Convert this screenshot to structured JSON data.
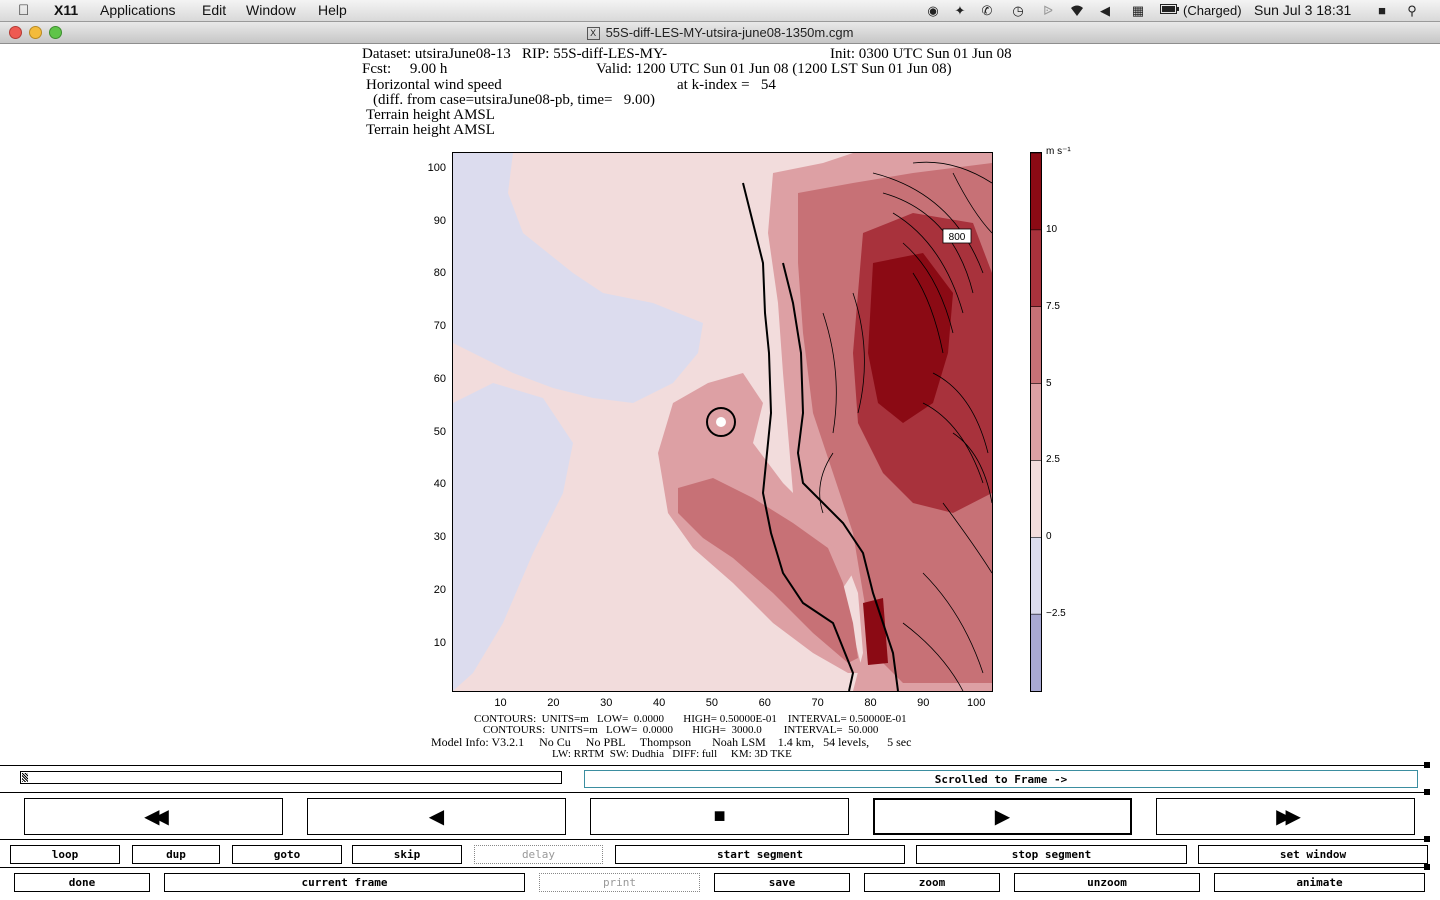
{
  "menubar": {
    "app": "X11",
    "items": [
      "Applications",
      "Edit",
      "Window",
      "Help"
    ],
    "battery": "(Charged)",
    "clock": "Sun Jul 3  18:31"
  },
  "window": {
    "title": "55S-diff-LES-MY-utsira-june08-1350m.cgm"
  },
  "header": {
    "line1a": "Dataset: utsiraJune08-13   RIP: 55S-diff-LES-MY-",
    "line1b": "Init: 0300 UTC Sun 01 Jun 08",
    "line2a": "Fcst:     9.00 h",
    "line2b": "Valid: 1200 UTC Sun 01 Jun 08 (1200 LST Sun 01 Jun 08)",
    "line3a": "Horizontal wind speed",
    "line3b": "at k-index =   54",
    "line4": "(diff. from case=utsiraJune08-pb, time=   9.00)",
    "line5": "Terrain height AMSL",
    "line6": "Terrain height AMSL"
  },
  "chart_data": {
    "type": "heatmap",
    "x_ticks": [
      "10",
      "20",
      "30",
      "40",
      "50",
      "60",
      "70",
      "80",
      "90",
      "100"
    ],
    "y_ticks": [
      "100",
      "90",
      "80",
      "70",
      "60",
      "50",
      "40",
      "30",
      "20",
      "10"
    ],
    "xlim": [
      1,
      103
    ],
    "ylim": [
      1,
      103
    ],
    "colorbar": {
      "unit": "m s⁻¹",
      "labels": [
        "10",
        "7.5",
        "5",
        "2.5",
        "0",
        "−2.5"
      ],
      "bins": [
        {
          "from": 10,
          "to": 12.5,
          "color": "#8b0a14"
        },
        {
          "from": 7.5,
          "to": 10,
          "color": "#a8323c"
        },
        {
          "from": 5,
          "to": 7.5,
          "color": "#c77176"
        },
        {
          "from": 2.5,
          "to": 5,
          "color": "#dda0a4"
        },
        {
          "from": 0,
          "to": 2.5,
          "color": "#f2dcdc"
        },
        {
          "from": -2.5,
          "to": 0,
          "color": "#dcdcee"
        },
        {
          "from": -5,
          "to": -2.5,
          "color": "#a8a8d2"
        }
      ]
    },
    "contour_label": "800",
    "footer": {
      "c1": "CONTOURS:  UNITS=m   LOW=  0.0000       HIGH= 0.50000E-01    INTERVAL= 0.50000E-01",
      "c2": "CONTOURS:  UNITS=m   LOW=  0.0000       HIGH=  3000.0        INTERVAL=  50.000",
      "c3": "Model Info: V3.2.1     No Cu     No PBL     Thompson       Noah LSM    1.4 km,   54 levels,      5 sec",
      "c4": "LW: RRTM  SW: Dudhia   DIFF: full     KM: 3D TKE"
    }
  },
  "controls": {
    "status": "Scrolled to Frame ->",
    "row1": [
      "loop",
      "dup",
      "goto",
      "skip",
      "delay",
      "start segment",
      "stop segment",
      "set window"
    ],
    "row2": [
      "done",
      "current frame",
      "print",
      "save",
      "zoom",
      "unzoom",
      "animate"
    ],
    "transport": {
      "rewind": "◀◀",
      "back": "◀",
      "stop": "■",
      "play": "▶",
      "ffwd": "▶▶"
    }
  }
}
